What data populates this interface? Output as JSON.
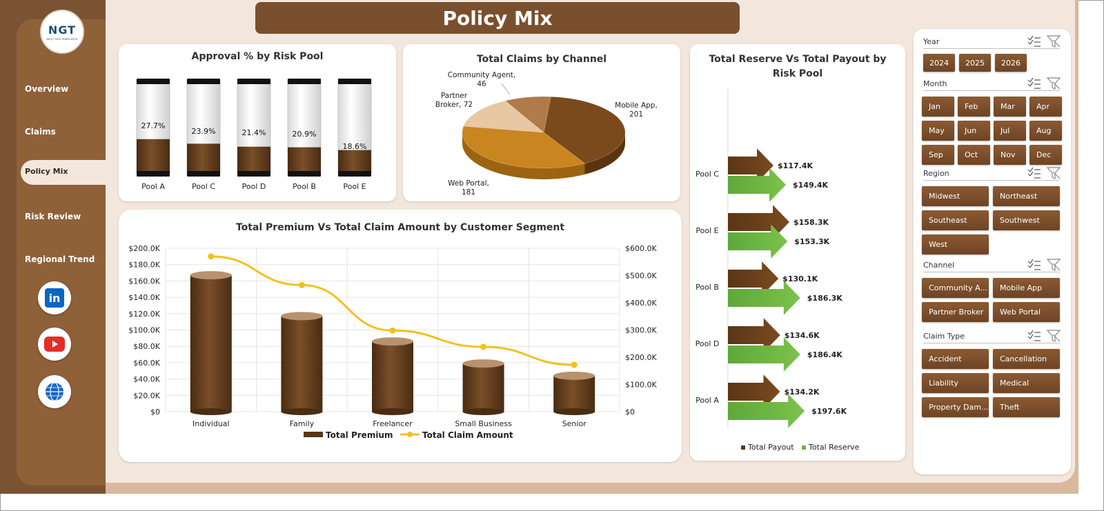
{
  "title": "Policy Mix",
  "logo": {
    "text": "NGT",
    "subtext": "NEXT GEN TEMPLATES"
  },
  "nav": {
    "items": [
      {
        "label": "Overview"
      },
      {
        "label": "Claims"
      },
      {
        "label": "Policy Mix"
      },
      {
        "label": "Risk Review"
      },
      {
        "label": "Regional Trend"
      }
    ],
    "active": "Policy Mix"
  },
  "social": [
    {
      "icon": "linkedin-icon",
      "color": "#0a66c2",
      "glyph": "in"
    },
    {
      "icon": "youtube-icon",
      "color": "#e52d27",
      "glyph": "▶"
    },
    {
      "icon": "globe-icon",
      "color": "#1565c0",
      "glyph": "🌐"
    }
  ],
  "colors": {
    "brown": "#6e4424",
    "brown_light": "#8e6139",
    "green": "#70b443",
    "gold": "#f2c11c",
    "panel_bg": "#f3e7dd"
  },
  "approval_chart": {
    "title": "Approval % by Risk Pool",
    "chart_data": {
      "type": "bar",
      "categories": [
        "Pool A",
        "Pool C",
        "Pool D",
        "Pool B",
        "Pool E"
      ],
      "values": [
        27.7,
        23.9,
        21.4,
        20.9,
        18.6
      ],
      "labels": [
        "27.7%",
        "23.9%",
        "21.4%",
        "20.9%",
        "18.6%"
      ],
      "ylim": [
        0,
        100
      ]
    }
  },
  "channel_chart": {
    "title": "Total Claims by Channel",
    "chart_data": {
      "type": "pie",
      "categories": [
        "Mobile App",
        "Web Portal",
        "Partner Broker",
        "Community Agent"
      ],
      "values": [
        201,
        181,
        72,
        46
      ],
      "labels": [
        {
          "line1": "Mobile App,",
          "line2": "201"
        },
        {
          "line1": "Web Portal,",
          "line2": "181"
        },
        {
          "line1": "Partner",
          "line2": "Broker, 72"
        },
        {
          "line1": "Community Agent,",
          "line2": "46"
        }
      ]
    }
  },
  "segment_chart": {
    "title": "Total Premium Vs Total Claim Amount by Customer Segment",
    "chart_data": {
      "type": "bar",
      "categories": [
        "Individual",
        "Family",
        "Freelancer",
        "Small Business",
        "Senior"
      ],
      "series": [
        {
          "name": "Total Premium",
          "type": "bar",
          "axis": "left",
          "values": [
            167000,
            117000,
            86000,
            59000,
            44000
          ]
        },
        {
          "name": "Total Claim Amount",
          "type": "line",
          "axis": "right",
          "values": [
            570000,
            465000,
            298000,
            238000,
            172000
          ]
        }
      ],
      "left_ticks": [
        "$0",
        "$20.0K",
        "$40.0K",
        "$60.0K",
        "$80.0K",
        "$100.0K",
        "$120.0K",
        "$140.0K",
        "$160.0K",
        "$180.0K",
        "$200.0K"
      ],
      "right_ticks": [
        "$0",
        "$100.0K",
        "$200.0K",
        "$300.0K",
        "$400.0K",
        "$500.0K",
        "$600.0K"
      ],
      "ylim_left": [
        0,
        200000
      ],
      "ylim_right": [
        0,
        600000
      ]
    }
  },
  "reserve_chart": {
    "title_line1": "Total Reserve Vs Total Payout by",
    "title_line2": "Risk Pool",
    "chart_data": {
      "type": "bar",
      "categories": [
        "Pool C",
        "Pool E",
        "Pool B",
        "Pool D",
        "Pool A"
      ],
      "series": [
        {
          "name": "Total Payout",
          "values": [
            117.4,
            158.3,
            130.1,
            134.6,
            134.2
          ],
          "labels": [
            "$117.4K",
            "$158.3K",
            "$130.1K",
            "$134.6K",
            "$134.2K"
          ]
        },
        {
          "name": "Total Reserve",
          "values": [
            149.4,
            153.3,
            186.3,
            186.4,
            197.6
          ],
          "labels": [
            "$149.4K",
            "$153.3K",
            "$186.3K",
            "$186.4K",
            "$197.6K"
          ]
        }
      ],
      "legend": [
        "Total Payout",
        "Total Reserve"
      ]
    }
  },
  "slicers": {
    "year": {
      "header": "Year",
      "items": [
        "2024",
        "2025",
        "2026"
      ]
    },
    "month": {
      "header": "Month",
      "items": [
        "Jan",
        "Feb",
        "Mar",
        "Apr",
        "May",
        "Jun",
        "Jul",
        "Aug",
        "Sep",
        "Oct",
        "Nov",
        "Dec"
      ]
    },
    "region": {
      "header": "Region",
      "items": [
        "Midwest",
        "Northeast",
        "Southeast",
        "Southwest",
        "West"
      ]
    },
    "channel": {
      "header": "Channel",
      "items": [
        "Community A...",
        "Mobile App",
        "Partner Broker",
        "Web Portal"
      ]
    },
    "claim_type": {
      "header": "Claim Type",
      "items": [
        "Accident",
        "Cancellation",
        "Liability",
        "Medical",
        "Property Dam...",
        "Theft"
      ]
    }
  }
}
